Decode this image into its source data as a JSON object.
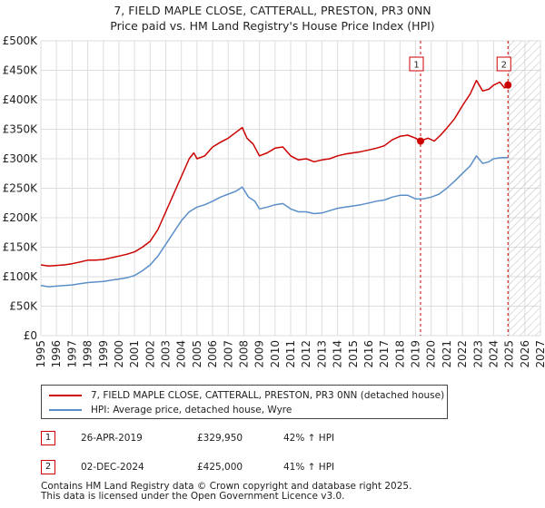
{
  "title_line1": "7, FIELD MAPLE CLOSE, CATTERALL, PRESTON, PR3 0NN",
  "title_line2": "Price paid vs. HM Land Registry's House Price Index (HPI)",
  "colors": {
    "property": "#cc0000",
    "hpi": "#5b8fc9",
    "grid": "#dddddd",
    "marker": "#cc0000"
  },
  "chart_data": {
    "type": "line",
    "xlim": [
      1995,
      2027
    ],
    "ylim": [
      0,
      500000
    ],
    "x_ticks": [
      "1995",
      "1996",
      "1997",
      "1998",
      "1999",
      "2000",
      "2001",
      "2002",
      "2003",
      "2004",
      "2005",
      "2006",
      "2007",
      "2008",
      "2009",
      "2010",
      "2011",
      "2012",
      "2013",
      "2014",
      "2015",
      "2016",
      "2017",
      "2018",
      "2019",
      "2020",
      "2021",
      "2022",
      "2023",
      "2024",
      "2025",
      "2026",
      "2027"
    ],
    "y_ticks": [
      {
        "v": 0,
        "label": "£0"
      },
      {
        "v": 50000,
        "label": "£50K"
      },
      {
        "v": 100000,
        "label": "£100K"
      },
      {
        "v": 150000,
        "label": "£150K"
      },
      {
        "v": 200000,
        "label": "£200K"
      },
      {
        "v": 250000,
        "label": "£250K"
      },
      {
        "v": 300000,
        "label": "£300K"
      },
      {
        "v": 350000,
        "label": "£350K"
      },
      {
        "v": 400000,
        "label": "£400K"
      },
      {
        "v": 450000,
        "label": "£450K"
      },
      {
        "v": 500000,
        "label": "£500K"
      }
    ],
    "hatch_from": 2024.92,
    "series": [
      {
        "name": "7, FIELD MAPLE CLOSE, CATTERALL, PRESTON, PR3 0NN (detached house)",
        "points": [
          [
            1995,
            120000
          ],
          [
            1995.5,
            118000
          ],
          [
            1996,
            119000
          ],
          [
            1996.5,
            120000
          ],
          [
            1997,
            122000
          ],
          [
            1997.5,
            125000
          ],
          [
            1998,
            128000
          ],
          [
            1998.5,
            128000
          ],
          [
            1999,
            129000
          ],
          [
            1999.5,
            132000
          ],
          [
            2000,
            135000
          ],
          [
            2000.5,
            138000
          ],
          [
            2001,
            142000
          ],
          [
            2001.5,
            150000
          ],
          [
            2002,
            160000
          ],
          [
            2002.5,
            180000
          ],
          [
            2003,
            210000
          ],
          [
            2003.5,
            240000
          ],
          [
            2004,
            270000
          ],
          [
            2004.5,
            300000
          ],
          [
            2004.8,
            310000
          ],
          [
            2005,
            300000
          ],
          [
            2005.5,
            305000
          ],
          [
            2006,
            320000
          ],
          [
            2006.5,
            328000
          ],
          [
            2007,
            335000
          ],
          [
            2007.5,
            345000
          ],
          [
            2007.9,
            353000
          ],
          [
            2008.2,
            335000
          ],
          [
            2008.6,
            325000
          ],
          [
            2009,
            305000
          ],
          [
            2009.5,
            310000
          ],
          [
            2010,
            318000
          ],
          [
            2010.5,
            320000
          ],
          [
            2011,
            305000
          ],
          [
            2011.5,
            298000
          ],
          [
            2012,
            300000
          ],
          [
            2012.5,
            295000
          ],
          [
            2013,
            298000
          ],
          [
            2013.5,
            300000
          ],
          [
            2014,
            305000
          ],
          [
            2014.5,
            308000
          ],
          [
            2015,
            310000
          ],
          [
            2015.5,
            312000
          ],
          [
            2016,
            315000
          ],
          [
            2016.5,
            318000
          ],
          [
            2017,
            322000
          ],
          [
            2017.5,
            332000
          ],
          [
            2018,
            338000
          ],
          [
            2018.5,
            340000
          ],
          [
            2019,
            335000
          ],
          [
            2019.3,
            329950
          ],
          [
            2019.8,
            335000
          ],
          [
            2020.2,
            330000
          ],
          [
            2020.6,
            340000
          ],
          [
            2021,
            352000
          ],
          [
            2021.5,
            368000
          ],
          [
            2022,
            390000
          ],
          [
            2022.5,
            410000
          ],
          [
            2022.9,
            433000
          ],
          [
            2023.3,
            415000
          ],
          [
            2023.7,
            418000
          ],
          [
            2024,
            425000
          ],
          [
            2024.4,
            430000
          ],
          [
            2024.7,
            420000
          ],
          [
            2024.92,
            425000
          ]
        ]
      },
      {
        "name": "HPI: Average price, detached house, Wyre",
        "points": [
          [
            1995,
            85000
          ],
          [
            1995.5,
            83000
          ],
          [
            1996,
            84000
          ],
          [
            1996.5,
            85000
          ],
          [
            1997,
            86000
          ],
          [
            1997.5,
            88000
          ],
          [
            1998,
            90000
          ],
          [
            1998.5,
            91000
          ],
          [
            1999,
            92000
          ],
          [
            1999.5,
            94000
          ],
          [
            2000,
            96000
          ],
          [
            2000.5,
            98000
          ],
          [
            2001,
            102000
          ],
          [
            2001.5,
            110000
          ],
          [
            2002,
            120000
          ],
          [
            2002.5,
            135000
          ],
          [
            2003,
            155000
          ],
          [
            2003.5,
            175000
          ],
          [
            2004,
            195000
          ],
          [
            2004.5,
            210000
          ],
          [
            2005,
            218000
          ],
          [
            2005.5,
            222000
          ],
          [
            2006,
            228000
          ],
          [
            2006.5,
            235000
          ],
          [
            2007,
            240000
          ],
          [
            2007.5,
            245000
          ],
          [
            2007.9,
            252000
          ],
          [
            2008.3,
            235000
          ],
          [
            2008.7,
            228000
          ],
          [
            2009,
            215000
          ],
          [
            2009.5,
            218000
          ],
          [
            2010,
            222000
          ],
          [
            2010.5,
            224000
          ],
          [
            2011,
            215000
          ],
          [
            2011.5,
            210000
          ],
          [
            2012,
            210000
          ],
          [
            2012.5,
            207000
          ],
          [
            2013,
            208000
          ],
          [
            2013.5,
            212000
          ],
          [
            2014,
            216000
          ],
          [
            2014.5,
            218000
          ],
          [
            2015,
            220000
          ],
          [
            2015.5,
            222000
          ],
          [
            2016,
            225000
          ],
          [
            2016.5,
            228000
          ],
          [
            2017,
            230000
          ],
          [
            2017.5,
            235000
          ],
          [
            2018,
            238000
          ],
          [
            2018.5,
            238000
          ],
          [
            2019,
            232000
          ],
          [
            2019.5,
            232000
          ],
          [
            2020,
            235000
          ],
          [
            2020.5,
            240000
          ],
          [
            2021,
            250000
          ],
          [
            2021.5,
            262000
          ],
          [
            2022,
            275000
          ],
          [
            2022.5,
            288000
          ],
          [
            2022.9,
            305000
          ],
          [
            2023.3,
            292000
          ],
          [
            2023.7,
            295000
          ],
          [
            2024,
            300000
          ],
          [
            2024.5,
            302000
          ],
          [
            2024.92,
            302000
          ]
        ]
      }
    ],
    "sales": [
      {
        "label": "1",
        "x": 2019.32,
        "y": 329950
      },
      {
        "label": "2",
        "x": 2024.92,
        "y": 425000
      }
    ]
  },
  "legend": {
    "property": "7, FIELD MAPLE CLOSE, CATTERALL, PRESTON, PR3 0NN (detached house)",
    "hpi": "HPI: Average price, detached house, Wyre"
  },
  "sales_table": [
    {
      "num": "1",
      "date": "26-APR-2019",
      "price": "£329,950",
      "change": "42% ↑ HPI"
    },
    {
      "num": "2",
      "date": "02-DEC-2024",
      "price": "£425,000",
      "change": "41% ↑ HPI"
    }
  ],
  "footer_line1": "Contains HM Land Registry data © Crown copyright and database right 2025.",
  "footer_line2": "This data is licensed under the Open Government Licence v3.0."
}
